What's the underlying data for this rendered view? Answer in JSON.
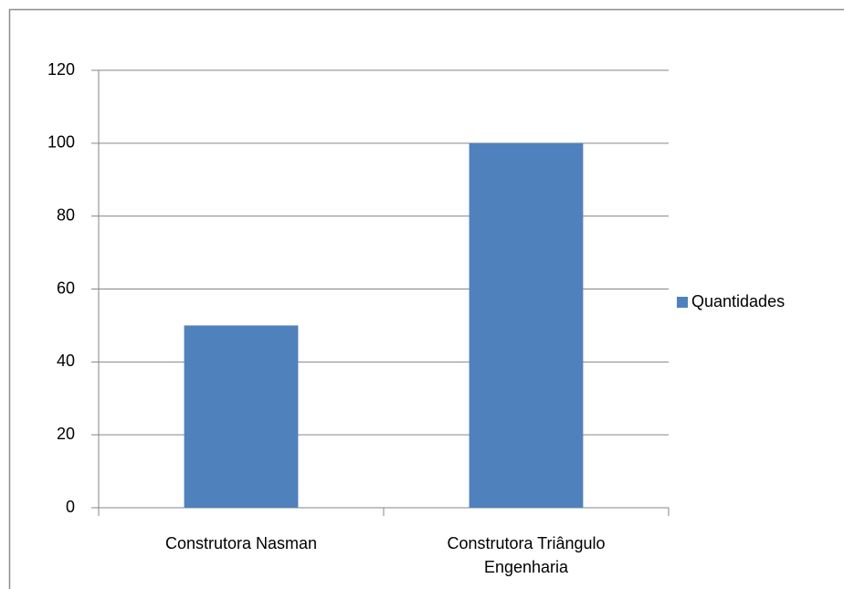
{
  "chart_data": {
    "type": "bar",
    "categories": [
      "Construtora Nasman",
      "Construtora Triângulo Engenharia"
    ],
    "series": [
      {
        "name": "Quantidades",
        "color": "#4f81bd",
        "values": [
          50,
          100
        ]
      }
    ],
    "ylim": [
      0,
      120
    ],
    "yticks": [
      0,
      20,
      40,
      60,
      80,
      100,
      120
    ],
    "grid": true,
    "legend": "right"
  }
}
